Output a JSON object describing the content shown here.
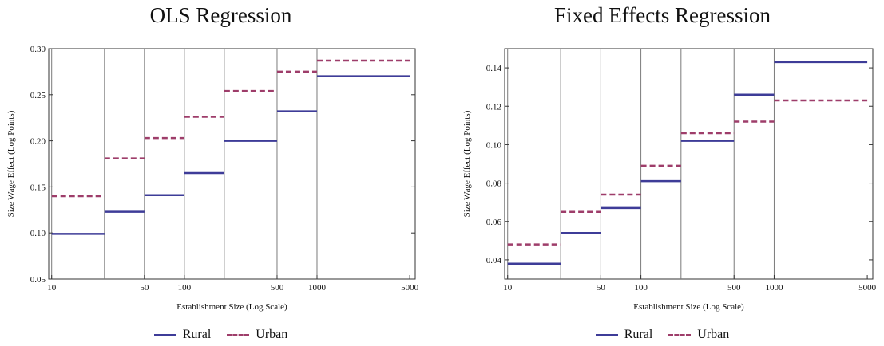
{
  "legend": {
    "rural": "Rural",
    "urban": "Urban"
  },
  "colors": {
    "rural": "#3e3c98",
    "urban": "#9e3d6a",
    "divider": "#7a7a7a"
  },
  "chart_data": [
    {
      "type": "line",
      "step": true,
      "title": "OLS Regression",
      "xlabel": "Establishment Size (Log Scale)",
      "ylabel": "Size Wage Effect (Log Points)",
      "xscale": "log",
      "xlim": [
        9.5,
        5500
      ],
      "ylim": [
        0.05,
        0.3
      ],
      "xticks": [
        10,
        50,
        100,
        500,
        1000,
        5000
      ],
      "yticks": [
        "0.05",
        "0.10",
        "0.15",
        "0.20",
        "0.25",
        "0.30"
      ],
      "size_bins": [
        10,
        25,
        50,
        100,
        200,
        500,
        1000,
        5000
      ],
      "legend_position": "bottom",
      "series": [
        {
          "name": "Rural",
          "values": [
            0.099,
            0.123,
            0.141,
            0.165,
            0.2,
            0.232,
            0.27
          ]
        },
        {
          "name": "Urban",
          "values": [
            0.14,
            0.181,
            0.203,
            0.226,
            0.254,
            0.275,
            0.287
          ]
        }
      ]
    },
    {
      "type": "line",
      "step": true,
      "title": "Fixed Effects Regression",
      "xlabel": "Establishment Size (Log Scale)",
      "ylabel": "Size Wage Effect (Log Points)",
      "xscale": "log",
      "xlim": [
        9.5,
        5500
      ],
      "ylim": [
        0.03,
        0.15
      ],
      "xticks": [
        10,
        50,
        100,
        500,
        1000,
        5000
      ],
      "yticks": [
        "0.04",
        "0.06",
        "0.08",
        "0.10",
        "0.12",
        "0.14"
      ],
      "size_bins": [
        10,
        25,
        50,
        100,
        200,
        500,
        1000,
        5000
      ],
      "legend_position": "bottom",
      "series": [
        {
          "name": "Rural",
          "values": [
            0.038,
            0.054,
            0.067,
            0.081,
            0.102,
            0.126,
            0.143
          ]
        },
        {
          "name": "Urban",
          "values": [
            0.048,
            0.065,
            0.074,
            0.089,
            0.106,
            0.112,
            0.123
          ]
        }
      ]
    }
  ]
}
